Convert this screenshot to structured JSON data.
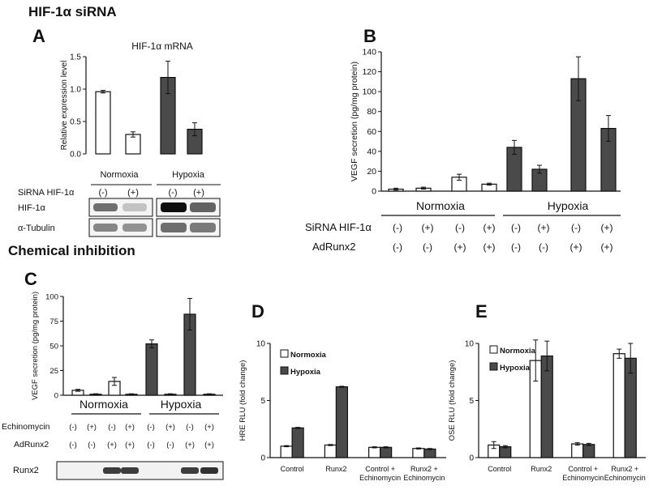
{
  "headings": {
    "sirna": "HIF-1α siRNA",
    "chemical": "Chemical inhibition"
  },
  "colors": {
    "open": "#ffffff",
    "filled": "#4a4a4a",
    "axis": "#111111"
  },
  "blots": {
    "a": {
      "rows": [
        {
          "label": "HIF-1α",
          "normoxia": [
            0.55,
            0.2
          ],
          "hypoxia": [
            0.95,
            0.6
          ]
        },
        {
          "label": "α-Tubulin",
          "normoxia": [
            0.45,
            0.4
          ],
          "hypoxia": [
            0.55,
            0.5
          ]
        }
      ]
    },
    "c": {
      "label": "Runx2",
      "lanes": [
        0,
        0,
        0.75,
        0.75,
        0,
        0,
        0.75,
        0.8
      ]
    }
  },
  "chart_data": [
    {
      "panel": "A",
      "type": "bar",
      "title": "HIF-1α mRNA",
      "ylabel": "Relative expression level",
      "ylim": [
        0,
        1.5
      ],
      "yticks": [
        "0.0",
        "0.5",
        "1.0",
        "1.5"
      ],
      "values": [
        0.96,
        0.3,
        1.18,
        0.38
      ],
      "errors": [
        0.02,
        0.04,
        0.25,
        0.1
      ],
      "fills": [
        "open",
        "open",
        "filled",
        "filled"
      ],
      "groups": [
        "Normoxia",
        "Hypoxia"
      ],
      "conditions": [
        {
          "label": "SiRNA HIF-1α",
          "values": [
            "(-)",
            "(+)",
            "(-)",
            "(+)"
          ]
        }
      ]
    },
    {
      "panel": "B",
      "type": "bar",
      "ylabel": "VEGF secretion (pg/mg protein)",
      "ylim": [
        0,
        140
      ],
      "yticks": [
        "0",
        "20",
        "40",
        "60",
        "80",
        "100",
        "120",
        "140"
      ],
      "values": [
        2,
        3,
        14,
        7,
        44,
        22,
        113,
        63
      ],
      "errors": [
        1,
        1,
        3,
        1,
        7,
        4,
        22,
        13
      ],
      "fills": [
        "open",
        "open",
        "open",
        "open",
        "filled",
        "filled",
        "filled",
        "filled"
      ],
      "groups": [
        "Normoxia",
        "Hypoxia"
      ],
      "conditions": [
        {
          "label": "SiRNA  HIF-1α",
          "values": [
            "(-)",
            "(+)",
            "(-)",
            "(+)",
            "(-)",
            "(+)",
            "(-)",
            "(+)"
          ]
        },
        {
          "label": "AdRunx2",
          "values": [
            "(-)",
            "(-)",
            "(+)",
            "(+)",
            "(-)",
            "(-)",
            "(+)",
            "(+)"
          ]
        }
      ]
    },
    {
      "panel": "C",
      "type": "bar",
      "ylabel": "VEGF secretion (pg/mg protein)",
      "ylim": [
        0,
        100
      ],
      "yticks": [
        "0",
        "25",
        "50",
        "75",
        "100"
      ],
      "values": [
        5,
        1,
        14,
        1,
        52,
        1,
        82,
        1
      ],
      "errors": [
        1,
        0.5,
        4,
        0.5,
        4,
        0.5,
        16,
        0.5
      ],
      "fills": [
        "open",
        "open",
        "open",
        "open",
        "filled",
        "filled",
        "filled",
        "filled"
      ],
      "groups": [
        "Normoxia",
        "Hypoxia"
      ],
      "conditions": [
        {
          "label": "Echinomycin",
          "values": [
            "(-)",
            "(+)",
            "(-)",
            "(+)",
            "(-)",
            "(+)",
            "(-)",
            "(+)"
          ]
        },
        {
          "label": "AdRunx2",
          "values": [
            "(-)",
            "(-)",
            "(+)",
            "(+)",
            "(-)",
            "(-)",
            "(+)",
            "(+)"
          ]
        }
      ]
    },
    {
      "panel": "D",
      "type": "bar",
      "ylabel": "HRE RLU (fold change)",
      "ylim": [
        0,
        10
      ],
      "yticks": [
        "0",
        "5",
        "10"
      ],
      "categories": [
        "Control",
        "Runx2",
        "Control +\nEchinomycin",
        "Runx2 +\nEchinomycin"
      ],
      "legend": [
        "Normoxia",
        "Hypoxia"
      ],
      "series": [
        {
          "name": "Normoxia",
          "values": [
            1.0,
            1.1,
            0.9,
            0.8
          ],
          "errors": [
            0.05,
            0.05,
            0.05,
            0.05
          ]
        },
        {
          "name": "Hypoxia",
          "values": [
            2.6,
            6.2,
            0.9,
            0.75
          ],
          "errors": [
            0.05,
            0.05,
            0.05,
            0.05
          ]
        }
      ]
    },
    {
      "panel": "E",
      "type": "bar",
      "ylabel": "OSE RLU (fold change)",
      "ylim": [
        0,
        10
      ],
      "yticks": [
        "0",
        "5",
        "10"
      ],
      "categories": [
        "Control",
        "Runx2",
        "Control +\nEchinomycin",
        "Runx2 +\nEchinomycin"
      ],
      "legend": [
        "Normoxia",
        "Hypoxia"
      ],
      "series": [
        {
          "name": "Normoxia",
          "values": [
            1.1,
            8.5,
            1.2,
            9.1
          ],
          "errors": [
            0.3,
            1.8,
            0.1,
            0.4
          ]
        },
        {
          "name": "Hypoxia",
          "values": [
            0.95,
            8.9,
            1.15,
            8.7
          ],
          "errors": [
            0.1,
            1.3,
            0.1,
            1.3
          ]
        }
      ]
    }
  ]
}
